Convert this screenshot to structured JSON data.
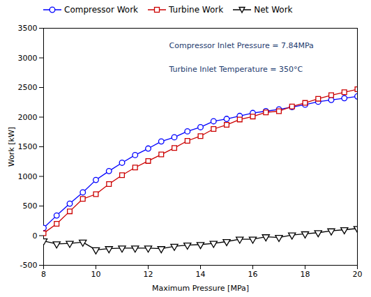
{
  "chart_data": {
    "type": "line",
    "xlabel": "Maximum Pressure [MPa]",
    "ylabel": "Work [kW]",
    "annotations": [
      "Compressor Inlet Pressure = 7.84MPa",
      "Turbine Inlet Temperature = 350°C"
    ],
    "x": [
      8,
      8.5,
      9,
      9.5,
      10,
      10.5,
      11,
      11.5,
      12,
      12.5,
      13,
      13.5,
      14,
      14.5,
      15,
      15.5,
      16,
      16.5,
      17,
      17.5,
      18,
      18.5,
      19,
      19.5,
      20
    ],
    "series": [
      {
        "name": "Compressor Work",
        "color": "#0000FF",
        "marker": "circle",
        "values": [
          130,
          340,
          540,
          730,
          940,
          1090,
          1230,
          1360,
          1470,
          1590,
          1660,
          1760,
          1830,
          1930,
          1970,
          2020,
          2070,
          2100,
          2130,
          2170,
          2210,
          2260,
          2290,
          2320,
          2350
        ]
      },
      {
        "name": "Turbine Work",
        "color": "#CC0000",
        "marker": "square",
        "values": [
          40,
          200,
          410,
          620,
          700,
          870,
          1020,
          1150,
          1260,
          1370,
          1480,
          1600,
          1680,
          1800,
          1870,
          1960,
          2010,
          2080,
          2100,
          2180,
          2240,
          2310,
          2370,
          2420,
          2470
        ]
      },
      {
        "name": "Net Work",
        "color": "#000000",
        "marker": "triangle-down",
        "values": [
          -90,
          -140,
          -130,
          -110,
          -240,
          -220,
          -210,
          -210,
          -210,
          -220,
          -180,
          -160,
          -150,
          -130,
          -100,
          -60,
          -60,
          -20,
          -30,
          10,
          30,
          50,
          80,
          100,
          120
        ]
      }
    ],
    "xlim": [
      8,
      20
    ],
    "ylim": [
      -500,
      3500
    ],
    "xticks": [
      8,
      10,
      12,
      14,
      16,
      18,
      20
    ],
    "yticks": [
      -500,
      0,
      500,
      1000,
      1500,
      2000,
      2500,
      3000,
      3500
    ],
    "grid": false,
    "legend": "upper left"
  }
}
